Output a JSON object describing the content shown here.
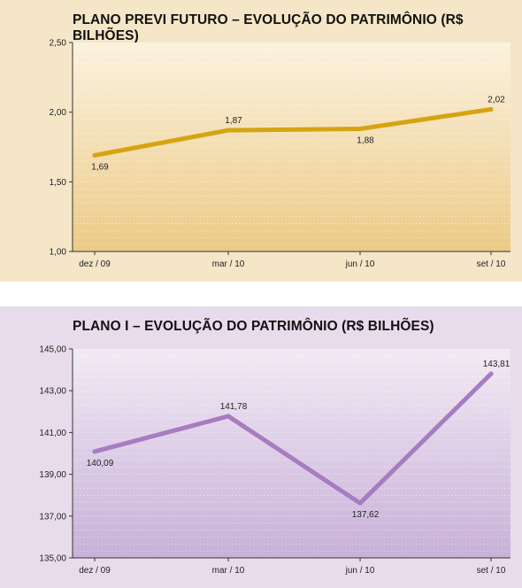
{
  "chart_data": [
    {
      "type": "line",
      "title": "PLANO PREVI FUTURO – EVOLUÇÃO DO PATRIMÔNIO (R$ BILHÕES)",
      "categories": [
        "dez / 09",
        "mar / 10",
        "jun / 10",
        "set / 10"
      ],
      "values": [
        1.69,
        1.87,
        1.88,
        2.02
      ],
      "value_labels": [
        "1,69",
        "1,87",
        "1,88",
        "2,02"
      ],
      "label_positions": [
        "below",
        "above",
        "below",
        "above"
      ],
      "yticks": [
        1.0,
        1.5,
        2.0,
        2.5
      ],
      "ytick_labels": [
        "1,00",
        "1,50",
        "2,00",
        "2,50"
      ],
      "ylim": [
        1.0,
        2.5
      ],
      "xlabel": "",
      "ylabel": "",
      "grid": true,
      "line_color": "#d5a412",
      "gradient": [
        "#fbf2df",
        "#ecca86"
      ]
    },
    {
      "type": "line",
      "title": "PLANO I – EVOLUÇÃO DO PATRIMÔNIO (R$ BILHÕES)",
      "categories": [
        "dez / 09",
        "mar / 10",
        "jun / 10",
        "set / 10"
      ],
      "values": [
        140.09,
        141.78,
        137.62,
        143.81
      ],
      "value_labels": [
        "140,09",
        "141,78",
        "137,62",
        "143,81"
      ],
      "label_positions": [
        "below",
        "above",
        "below",
        "above"
      ],
      "yticks": [
        135,
        137,
        139,
        141,
        143,
        145
      ],
      "ytick_labels": [
        "135,00",
        "137,00",
        "139,00",
        "141,00",
        "143,00",
        "145,00"
      ],
      "ylim": [
        135,
        145
      ],
      "xlabel": "",
      "ylabel": "",
      "grid": true,
      "line_color": "#a77cc0",
      "gradient": [
        "#f1eaf4",
        "#c8b0d8"
      ]
    }
  ]
}
